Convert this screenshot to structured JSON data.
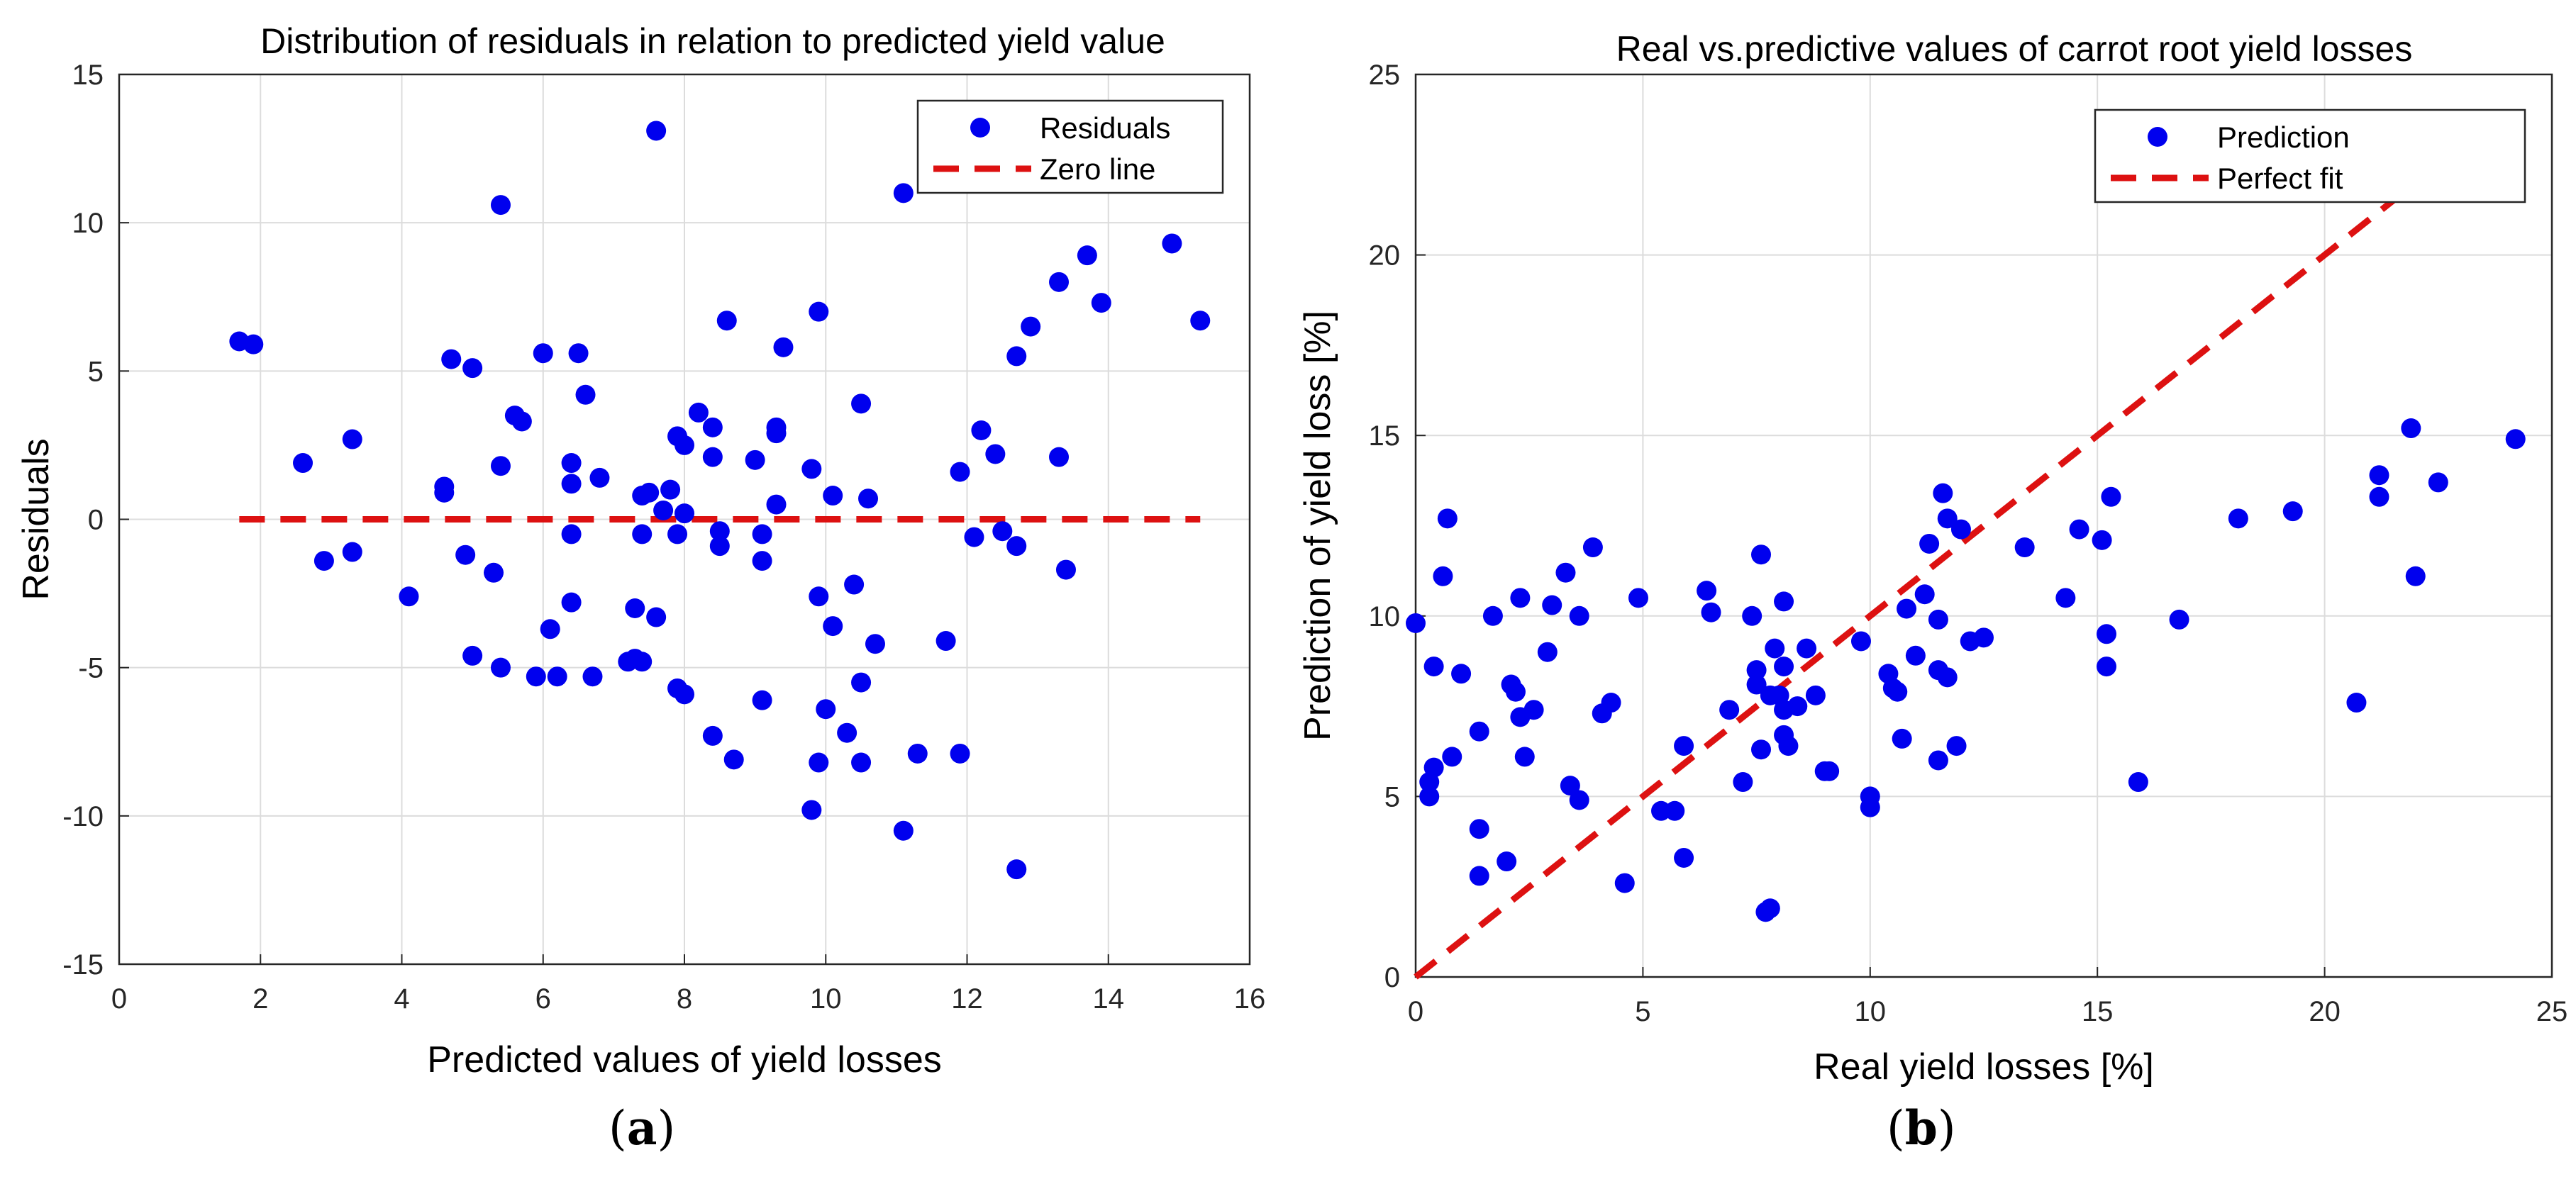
{
  "figure": {
    "panel_a_label": "a",
    "panel_b_label": "b"
  },
  "chart_data": [
    {
      "type": "scatter",
      "title": "Distribution of residuals in relation to predicted yield value",
      "xlabel": "Predicted values of yield losses",
      "ylabel": "Residuals",
      "xlim": [
        0,
        16
      ],
      "ylim": [
        -15,
        15
      ],
      "xticks": [
        0,
        2,
        4,
        6,
        8,
        10,
        12,
        14,
        16
      ],
      "yticks": [
        -15,
        -10,
        -5,
        0,
        5,
        10,
        15
      ],
      "grid": true,
      "legend_position": "top-right",
      "colors": {
        "points": "#0000ee",
        "line": "#dd1111"
      },
      "series": [
        {
          "name": "Residuals",
          "kind": "points",
          "points": [
            [
              1.7,
              6
            ],
            [
              1.9,
              5.9
            ],
            [
              2.6,
              1.9
            ],
            [
              2.9,
              -1.4
            ],
            [
              3.3,
              -1.1
            ],
            [
              3.3,
              2.7
            ],
            [
              4.1,
              -2.6
            ],
            [
              4.6,
              0.9
            ],
            [
              4.6,
              1.1
            ],
            [
              4.7,
              5.4
            ],
            [
              4.9,
              -1.2
            ],
            [
              5,
              5.1
            ],
            [
              5,
              -4.6
            ],
            [
              5.3,
              -1.8
            ],
            [
              5.4,
              10.6
            ],
            [
              5.4,
              1.8
            ],
            [
              5.4,
              -5
            ],
            [
              5.6,
              3.5
            ],
            [
              5.7,
              3.3
            ],
            [
              5.9,
              -5.3
            ],
            [
              6,
              5.6
            ],
            [
              6.1,
              -3.7
            ],
            [
              6.2,
              -5.3
            ],
            [
              6.4,
              1.9
            ],
            [
              6.4,
              1.2
            ],
            [
              6.4,
              -0.5
            ],
            [
              6.4,
              -2.8
            ],
            [
              6.5,
              5.6
            ],
            [
              6.6,
              4.2
            ],
            [
              6.7,
              -5.3
            ],
            [
              6.8,
              1.4
            ],
            [
              7.2,
              -4.8
            ],
            [
              7.3,
              -4.7
            ],
            [
              7.3,
              -3
            ],
            [
              7.4,
              -4.8
            ],
            [
              7.4,
              0.8
            ],
            [
              7.4,
              -0.5
            ],
            [
              7.5,
              0.9
            ],
            [
              7.6,
              13.1
            ],
            [
              7.6,
              -3.3
            ],
            [
              7.7,
              0.3
            ],
            [
              7.8,
              1
            ],
            [
              7.9,
              2.8
            ],
            [
              7.9,
              -0.5
            ],
            [
              7.9,
              -5.7
            ],
            [
              8,
              0.2
            ],
            [
              8,
              -5.9
            ],
            [
              8,
              2.5
            ],
            [
              8.2,
              3.6
            ],
            [
              8.4,
              3.1
            ],
            [
              8.4,
              2.1
            ],
            [
              8.4,
              -7.3
            ],
            [
              8.5,
              -0.9
            ],
            [
              8.5,
              -0.4
            ],
            [
              8.6,
              6.7
            ],
            [
              8.7,
              -8.1
            ],
            [
              9,
              2
            ],
            [
              9.1,
              -6.1
            ],
            [
              9.1,
              -0.5
            ],
            [
              9.1,
              -1.4
            ],
            [
              9.3,
              2.9
            ],
            [
              9.3,
              3.1
            ],
            [
              9.3,
              0.5
            ],
            [
              9.4,
              5.8
            ],
            [
              9.8,
              -9.8
            ],
            [
              9.8,
              1.7
            ],
            [
              9.9,
              7
            ],
            [
              9.9,
              -2.6
            ],
            [
              9.9,
              -8.2
            ],
            [
              10,
              -6.4
            ],
            [
              10.1,
              -3.6
            ],
            [
              10.1,
              0.8
            ],
            [
              10.3,
              -7.2
            ],
            [
              10.4,
              -2.2
            ],
            [
              10.5,
              3.9
            ],
            [
              10.5,
              -5.5
            ],
            [
              10.5,
              -8.2
            ],
            [
              10.6,
              0.7
            ],
            [
              10.7,
              -4.2
            ],
            [
              11.1,
              11
            ],
            [
              11.1,
              -10.5
            ],
            [
              11.3,
              -7.9
            ],
            [
              11.7,
              -4.1
            ],
            [
              11.9,
              1.6
            ],
            [
              11.9,
              -7.9
            ],
            [
              12.1,
              -0.6
            ],
            [
              12.2,
              3
            ],
            [
              12.4,
              2.2
            ],
            [
              12.5,
              -0.4
            ],
            [
              12.7,
              5.5
            ],
            [
              12.7,
              -11.8
            ],
            [
              12.7,
              -0.9
            ],
            [
              12.9,
              6.5
            ],
            [
              13.3,
              8
            ],
            [
              13.3,
              2.1
            ],
            [
              13.4,
              -1.7
            ],
            [
              13.7,
              8.9
            ],
            [
              13.9,
              7.3
            ],
            [
              14.9,
              9.3
            ],
            [
              15.3,
              6.7
            ]
          ]
        },
        {
          "name": "Zero line",
          "kind": "dashed-line",
          "points": [
            [
              1.7,
              0
            ],
            [
              15.3,
              0
            ]
          ]
        }
      ]
    },
    {
      "type": "scatter",
      "title": "Real vs.predictive values of carrot root yield losses",
      "xlabel": "Real yield losses [%]",
      "ylabel": "Prediction of yield loss [%]",
      "xlim": [
        0,
        25
      ],
      "ylim": [
        0,
        25
      ],
      "xticks": [
        0,
        5,
        10,
        15,
        20,
        25
      ],
      "yticks": [
        0,
        5,
        10,
        15,
        20,
        25
      ],
      "grid": true,
      "legend_position": "top-right",
      "colors": {
        "points": "#0000ee",
        "line": "#dd1111"
      },
      "series": [
        {
          "name": "Prediction",
          "kind": "points",
          "points": [
            [
              0,
              9.8
            ],
            [
              0.3,
              5.4
            ],
            [
              0.3,
              5
            ],
            [
              0.4,
              5.8
            ],
            [
              0.4,
              8.6
            ],
            [
              0.6,
              11.1
            ],
            [
              0.7,
              12.7
            ],
            [
              0.8,
              6.1
            ],
            [
              1,
              8.4
            ],
            [
              1.4,
              6.8
            ],
            [
              1.4,
              4.1
            ],
            [
              1.4,
              2.8
            ],
            [
              1.7,
              10
            ],
            [
              2,
              3.2
            ],
            [
              2.1,
              8.1
            ],
            [
              2.2,
              7.9
            ],
            [
              2.3,
              10.5
            ],
            [
              2.3,
              7.2
            ],
            [
              2.4,
              6.1
            ],
            [
              2.6,
              7.4
            ],
            [
              2.9,
              9
            ],
            [
              3,
              10.3
            ],
            [
              3.3,
              11.2
            ],
            [
              3.4,
              5.3
            ],
            [
              3.6,
              10
            ],
            [
              3.6,
              4.9
            ],
            [
              3.9,
              11.9
            ],
            [
              4.1,
              7.3
            ],
            [
              4.3,
              7.6
            ],
            [
              4.6,
              2.6
            ],
            [
              4.9,
              10.5
            ],
            [
              5.4,
              4.6
            ],
            [
              5.7,
              4.6
            ],
            [
              5.9,
              6.4
            ],
            [
              5.9,
              3.3
            ],
            [
              6.4,
              10.7
            ],
            [
              6.5,
              10.1
            ],
            [
              6.9,
              7.4
            ],
            [
              7.2,
              5.4
            ],
            [
              7.4,
              10
            ],
            [
              7.5,
              8.1
            ],
            [
              7.5,
              8.5
            ],
            [
              7.6,
              6.3
            ],
            [
              7.6,
              11.7
            ],
            [
              7.7,
              1.8
            ],
            [
              7.8,
              1.9
            ],
            [
              7.8,
              7.8
            ],
            [
              7.9,
              9.1
            ],
            [
              8,
              7.8
            ],
            [
              8.1,
              7.4
            ],
            [
              8.1,
              10.4
            ],
            [
              8.1,
              8.6
            ],
            [
              8.1,
              6.7
            ],
            [
              8.2,
              6.4
            ],
            [
              8.4,
              7.5
            ],
            [
              8.6,
              9.1
            ],
            [
              8.8,
              7.8
            ],
            [
              9,
              5.7
            ],
            [
              9.1,
              5.7
            ],
            [
              9.8,
              9.3
            ],
            [
              10,
              5
            ],
            [
              10,
              4.7
            ],
            [
              10.4,
              8.4
            ],
            [
              10.5,
              8
            ],
            [
              10.6,
              7.9
            ],
            [
              10.7,
              6.6
            ],
            [
              10.8,
              10.2
            ],
            [
              11,
              8.9
            ],
            [
              11.2,
              10.6
            ],
            [
              11.3,
              12
            ],
            [
              11.5,
              8.5
            ],
            [
              11.5,
              6
            ],
            [
              11.5,
              9.9
            ],
            [
              11.6,
              13.4
            ],
            [
              11.7,
              8.3
            ],
            [
              11.7,
              12.7
            ],
            [
              11.9,
              6.4
            ],
            [
              12,
              12.4
            ],
            [
              12.2,
              9.3
            ],
            [
              12.5,
              9.4
            ],
            [
              13.4,
              11.9
            ],
            [
              14.3,
              10.5
            ],
            [
              14.6,
              12.4
            ],
            [
              15.1,
              12.1
            ],
            [
              15.2,
              8.6
            ],
            [
              15.2,
              9.5
            ],
            [
              15.3,
              13.3
            ],
            [
              15.9,
              5.4
            ],
            [
              16.8,
              9.9
            ],
            [
              18.1,
              12.7
            ],
            [
              19.3,
              12.9
            ],
            [
              20.7,
              7.6
            ],
            [
              21.2,
              13.9
            ],
            [
              21.2,
              13.3
            ],
            [
              21.9,
              15.2
            ],
            [
              22,
              11.1
            ],
            [
              22.5,
              13.7
            ],
            [
              24.2,
              14.9
            ]
          ]
        },
        {
          "name": "Perfect fit",
          "kind": "dashed-line",
          "points": [
            [
              0,
              0
            ],
            [
              22.5,
              22.5
            ]
          ]
        }
      ]
    }
  ]
}
